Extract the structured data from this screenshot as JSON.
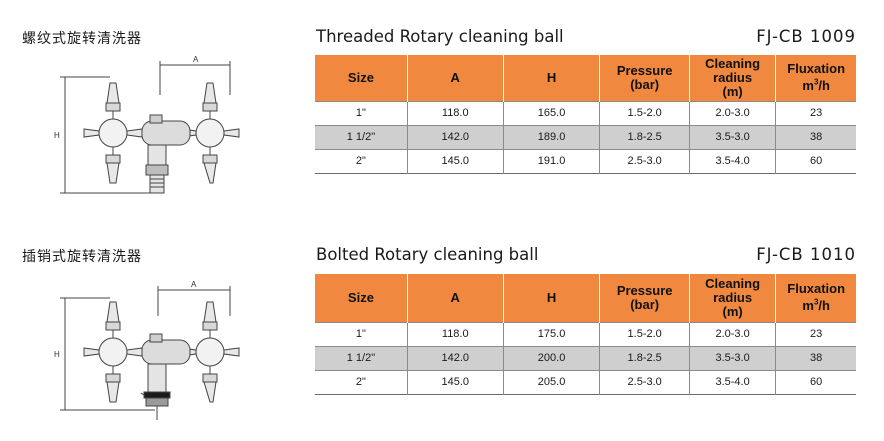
{
  "sections": [
    {
      "cn_title": "螺纹式旋转清洗器",
      "en_title": "Threaded Rotary cleaning ball",
      "code": "FJ-CB 1009",
      "drawing": {
        "dim_a": "A",
        "dim_h": "H"
      },
      "headers": {
        "size": "Size",
        "a": "A",
        "h": "H",
        "pressure": "Pressure",
        "pressure_unit": "(bar)",
        "radius_1": "Cleaning",
        "radius_2": "radius",
        "radius_unit": "(m)",
        "flux": "Fluxation",
        "flux_unit_pre": "m",
        "flux_unit_sup": "3",
        "flux_unit_post": "/h"
      },
      "rows": [
        {
          "size": "1\"",
          "a": "118.0",
          "h": "165.0",
          "pressure": "1.5-2.0",
          "radius": "2.0-3.0",
          "flux": "23"
        },
        {
          "size": "1 1/2\"",
          "a": "142.0",
          "h": "189.0",
          "pressure": "1.8-2.5",
          "radius": "3.5-3.0",
          "flux": "38"
        },
        {
          "size": "2\"",
          "a": "145.0",
          "h": "191.0",
          "pressure": "2.5-3.0",
          "radius": "3.5-4.0",
          "flux": "60"
        }
      ]
    },
    {
      "cn_title": "插销式旋转清洗器",
      "en_title": "Bolted Rotary cleaning ball",
      "code": "FJ-CB 1010",
      "drawing": {
        "dim_a": "A",
        "dim_h": "H"
      },
      "headers": {
        "size": "Size",
        "a": "A",
        "h": "H",
        "pressure": "Pressure",
        "pressure_unit": "(bar)",
        "radius_1": "Cleaning",
        "radius_2": "radius",
        "radius_unit": "(m)",
        "flux": "Fluxation",
        "flux_unit_pre": "m",
        "flux_unit_sup": "3",
        "flux_unit_post": "/h"
      },
      "rows": [
        {
          "size": "1\"",
          "a": "118.0",
          "h": "175.0",
          "pressure": "1.5-2.0",
          "radius": "2.0-3.0",
          "flux": "23"
        },
        {
          "size": "1 1/2\"",
          "a": "142.0",
          "h": "200.0",
          "pressure": "1.8-2.5",
          "radius": "3.5-3.0",
          "flux": "38"
        },
        {
          "size": "2\"",
          "a": "145.0",
          "h": "205.0",
          "pressure": "2.5-3.0",
          "radius": "3.5-4.0",
          "flux": "60"
        }
      ]
    }
  ]
}
